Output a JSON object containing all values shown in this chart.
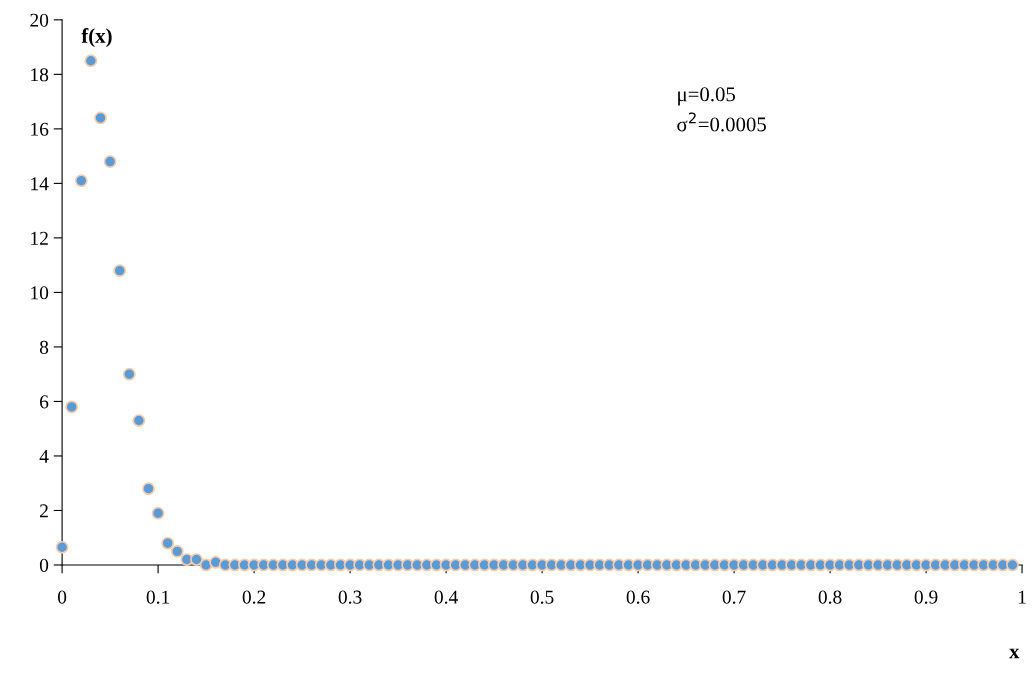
{
  "chart_data": {
    "type": "scatter",
    "xlabel": "x",
    "ylabel": "f(x)",
    "x": [
      0,
      0.01,
      0.02,
      0.03,
      0.04,
      0.05,
      0.06,
      0.07,
      0.08,
      0.09,
      0.1,
      0.11,
      0.12,
      0.13,
      0.14,
      0.15,
      0.16,
      0.17,
      0.18,
      0.19,
      0.2,
      0.21,
      0.22,
      0.23,
      0.24,
      0.25,
      0.26,
      0.27,
      0.28,
      0.29,
      0.3,
      0.31,
      0.32,
      0.33,
      0.34,
      0.35,
      0.36,
      0.37,
      0.38,
      0.39,
      0.4,
      0.41,
      0.42,
      0.43,
      0.44,
      0.45,
      0.46,
      0.47,
      0.48,
      0.49,
      0.5,
      0.51,
      0.52,
      0.53,
      0.54,
      0.55,
      0.56,
      0.57,
      0.58,
      0.59,
      0.6,
      0.61,
      0.62,
      0.63,
      0.64,
      0.65,
      0.66,
      0.67,
      0.68,
      0.69,
      0.7,
      0.71,
      0.72,
      0.73,
      0.74,
      0.75,
      0.76,
      0.77,
      0.78,
      0.79,
      0.8,
      0.81,
      0.82,
      0.83,
      0.84,
      0.85,
      0.86,
      0.87,
      0.88,
      0.89,
      0.9,
      0.91,
      0.92,
      0.93,
      0.94,
      0.95,
      0.96,
      0.97,
      0.98,
      0.99
    ],
    "series": [
      {
        "color": "#5b9bd5",
        "values": [
          0.65,
          5.8,
          14.1,
          18.5,
          16.4,
          14.8,
          10.8,
          7.0,
          5.3,
          2.8,
          1.9,
          0.8,
          0.5,
          0.2,
          0.2,
          0.0,
          0.1,
          0,
          0,
          0,
          0,
          0,
          0,
          0,
          0,
          0,
          0,
          0,
          0,
          0,
          0,
          0,
          0,
          0,
          0,
          0,
          0,
          0,
          0,
          0,
          0,
          0,
          0,
          0,
          0,
          0,
          0,
          0,
          0,
          0,
          0,
          0,
          0,
          0,
          0,
          0,
          0,
          0,
          0,
          0,
          0,
          0,
          0,
          0,
          0,
          0,
          0,
          0,
          0,
          0,
          0,
          0,
          0,
          0,
          0,
          0,
          0,
          0,
          0,
          0,
          0,
          0,
          0,
          0,
          0,
          0,
          0,
          0,
          0,
          0,
          0,
          0,
          0,
          0,
          0,
          0,
          0,
          0,
          0,
          0
        ]
      }
    ],
    "xlim": [
      0,
      1
    ],
    "ylim": [
      0,
      20
    ],
    "xticks": [
      0,
      0.1,
      0.2,
      0.3,
      0.4,
      0.5,
      0.6,
      0.7,
      0.8,
      0.9,
      1
    ],
    "yticks": [
      0,
      2,
      4,
      6,
      8,
      10,
      12,
      14,
      16,
      18,
      20
    ],
    "annotations": [
      "μ=0.05",
      "σ$^{2}$=0.0005"
    ],
    "marker": "circle",
    "grid": false,
    "legend": false
  }
}
